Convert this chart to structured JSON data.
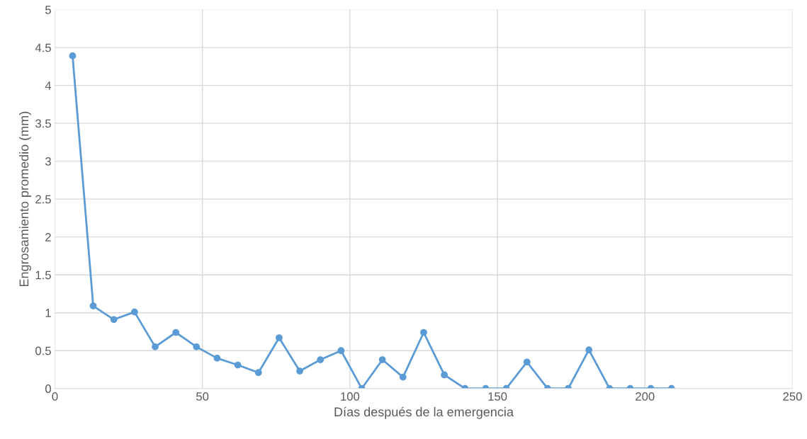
{
  "chart_data": {
    "type": "line",
    "xlabel": "Días después de la emergencia",
    "ylabel": "Engrosamiento promedio (mm)",
    "x": [
      6,
      13,
      20,
      27,
      34,
      41,
      48,
      55,
      62,
      69,
      76,
      83,
      90,
      97,
      104,
      111,
      118,
      125,
      132,
      139,
      146,
      153,
      160,
      167,
      174,
      181,
      188,
      195,
      202,
      209
    ],
    "series": [
      {
        "color": "#5b9bd5",
        "values": [
          4.39,
          1.09,
          0.91,
          1.01,
          0.55,
          0.74,
          0.55,
          0.4,
          0.31,
          0.21,
          0.67,
          0.23,
          0.38,
          0.5,
          0,
          0.38,
          0.15,
          0.74,
          0.18,
          0,
          0,
          0,
          0.35,
          0,
          0,
          0.51,
          0,
          0,
          0,
          0
        ]
      }
    ],
    "xlim": [
      0,
      250
    ],
    "xticks": [
      0,
      50,
      100,
      150,
      200,
      250
    ],
    "ylim": [
      0,
      5
    ],
    "yticks": [
      0,
      0.5,
      1,
      1.5,
      2,
      2.5,
      3,
      3.5,
      4,
      4.5,
      5
    ],
    "grid": true,
    "marker": "circle",
    "line_style": "solid"
  }
}
